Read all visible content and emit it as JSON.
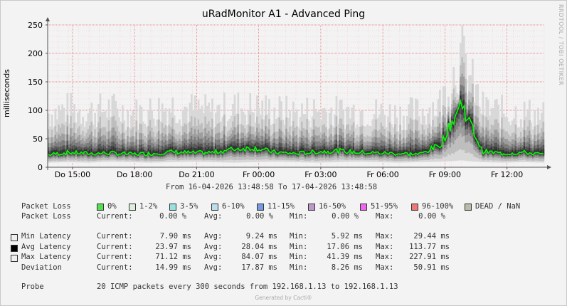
{
  "title": "uRadMonitor A1 - Advanced Ping",
  "watermark": "RRDTOOL / TOBI OETIKER",
  "footer": "Generated by Cacti®",
  "range_text": "From 16-04-2026 13:48:58 To 17-04-2026 13:48:58",
  "colors": {
    "avg": "#00ff00",
    "background": "#f3f3f3",
    "grid": "#ff9a9a"
  },
  "legend": {
    "loss_label": "Packet Loss",
    "loss_items": [
      {
        "label": "0%",
        "color": "#55dd55"
      },
      {
        "label": "1-2%",
        "color": "#ddeedd"
      },
      {
        "label": "3-5%",
        "color": "#99e0e0"
      },
      {
        "label": "6-10%",
        "color": "#bbddee"
      },
      {
        "label": "11-15%",
        "color": "#7799dd"
      },
      {
        "label": "16-50%",
        "color": "#bb99cc"
      },
      {
        "label": "51-95%",
        "color": "#ee66ee"
      },
      {
        "label": "96-100%",
        "color": "#ee7777"
      },
      {
        "label": "DEAD / NaN",
        "color": "#bbbbaa"
      }
    ],
    "loss_stats_label": "Packet Loss",
    "rows": [
      {
        "label": "Min Latency",
        "color": "#f0f0f0",
        "current": "7.90 ms",
        "avg": "9.24 ms",
        "min": "5.92 ms",
        "max": "29.44 ms"
      },
      {
        "label": "Avg Latency",
        "color": "#000000",
        "current": "23.97 ms",
        "avg": "28.04 ms",
        "min": "17.06 ms",
        "max": "113.77 ms"
      },
      {
        "label": "Max Latency",
        "color": "#f0f0f0",
        "current": "71.12 ms",
        "avg": "84.07 ms",
        "min": "41.39 ms",
        "max": "227.91 ms"
      },
      {
        "label": "Deviation",
        "color": "",
        "current": "14.99 ms",
        "avg": "17.87 ms",
        "min": "8.26 ms",
        "max": "50.91 ms"
      }
    ],
    "loss_stats": {
      "current": "0.00 %",
      "avg": "0.00 %",
      "min": "0.00 %",
      "max": "0.00 %"
    },
    "probe_label": "Probe",
    "probe_text": "20 ICMP packets every 300 seconds from 192.168.1.13 to 192.168.1.13",
    "k_current": "Current:",
    "k_avg": "Avg:",
    "k_min": "Min:",
    "k_max": "Max:"
  },
  "chart_data": {
    "type": "area",
    "ylabel": "milliseconds",
    "ylim": [
      0,
      250
    ],
    "yticks": [
      0,
      50,
      100,
      150,
      200,
      250
    ],
    "xtick_labels": [
      "Do 15:00",
      "Do 18:00",
      "Do 21:00",
      "Fr 00:00",
      "Fr 03:00",
      "Fr 06:00",
      "Fr 09:00",
      "Fr 12:00"
    ],
    "xtick_hours": [
      1.2,
      4.2,
      7.2,
      10.2,
      13.2,
      16.2,
      19.2,
      22.2
    ],
    "xlim_hours": [
      0,
      24
    ],
    "grid": true,
    "series": [
      {
        "name": "Min Latency",
        "x": [
          0,
          1,
          2,
          3,
          4,
          5,
          6,
          7,
          8,
          9,
          10,
          11,
          12,
          13,
          14,
          15,
          16,
          17,
          18,
          19,
          20,
          21,
          22,
          23,
          24
        ],
        "values": [
          8,
          9,
          8,
          10,
          9,
          8,
          9,
          10,
          9,
          8,
          9,
          10,
          9,
          8,
          9,
          10,
          9,
          8,
          9,
          10,
          12,
          9,
          8,
          9,
          8
        ]
      },
      {
        "name": "Avg Latency",
        "x": [
          0,
          1,
          2,
          3,
          4,
          5,
          6,
          7,
          8,
          9,
          10,
          11,
          12,
          13,
          14,
          15,
          16,
          17,
          18,
          19,
          20,
          21,
          22,
          23,
          24
        ],
        "values": [
          22,
          26,
          24,
          25,
          23,
          24,
          27,
          25,
          26,
          32,
          34,
          26,
          24,
          27,
          29,
          26,
          25,
          24,
          23,
          40,
          113,
          28,
          24,
          26,
          22
        ]
      },
      {
        "name": "Max Latency",
        "x": [
          0,
          1,
          2,
          3,
          4,
          5,
          6,
          7,
          8,
          9,
          10,
          11,
          12,
          13,
          14,
          15,
          16,
          17,
          18,
          19,
          20,
          21,
          22,
          23,
          24
        ],
        "values": [
          110,
          118,
          112,
          120,
          108,
          115,
          125,
          118,
          112,
          122,
          120,
          115,
          110,
          116,
          112,
          115,
          110,
          108,
          112,
          130,
          228,
          120,
          112,
          110,
          105
        ]
      }
    ]
  }
}
